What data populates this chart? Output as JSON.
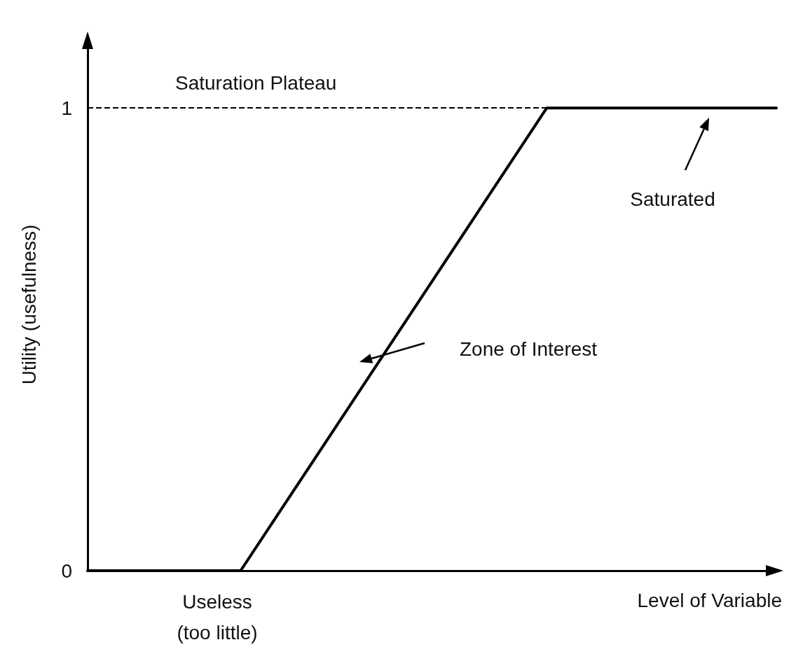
{
  "chart_data": {
    "type": "line",
    "xlabel": "Level of Variable",
    "ylabel": "Utility (usefulness)",
    "categories": [
      null,
      null,
      null,
      null,
      null,
      null,
      null,
      null,
      null,
      null
    ],
    "series": [
      {
        "color": "#000000",
        "values": [
          0,
          0,
          0,
          0.25,
          0.5,
          0.75,
          1,
          1,
          1,
          1
        ]
      }
    ],
    "ylim": [
      0,
      1.15
    ],
    "yticks": [
      0,
      1
    ],
    "grid": false,
    "marker": "none",
    "line_style": "solid",
    "ref_lines": [
      {
        "axis": "y",
        "value": 1,
        "label": "Saturation Plateau",
        "color": "#000000",
        "line_style": "dashed"
      }
    ],
    "annotations": [
      "Saturated",
      "Zone of Interest",
      "Useless\n(too little)"
    ]
  }
}
